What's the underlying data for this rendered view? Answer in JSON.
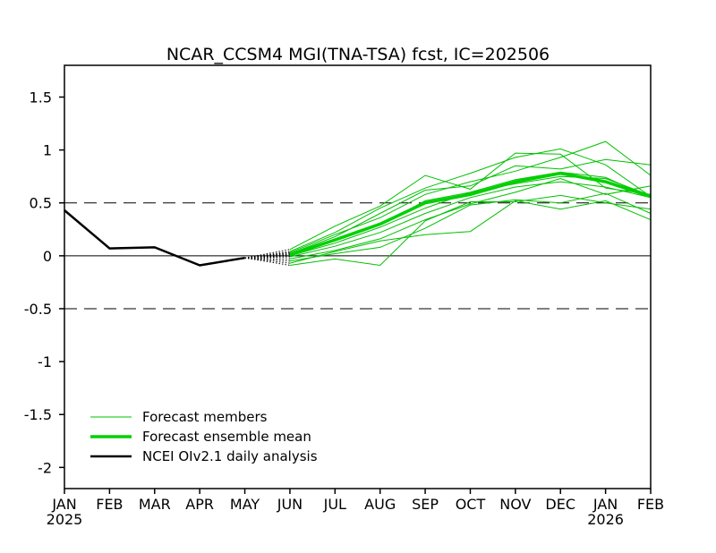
{
  "chart_data": {
    "type": "line",
    "title": "NCAR_CCSM4 MGI(TNA-TSA) fcst, IC=202506",
    "xlabel": "",
    "ylabel": "",
    "x_ticks": [
      "JAN",
      "FEB",
      "MAR",
      "APR",
      "MAY",
      "JUN",
      "JUL",
      "AUG",
      "SEP",
      "OCT",
      "NOV",
      "DEC",
      "JAN",
      "FEB"
    ],
    "x_year_labels": [
      {
        "index": 0,
        "label": "2025"
      },
      {
        "index": 12,
        "label": "2026"
      }
    ],
    "ylim": [
      -2.2,
      1.8
    ],
    "y_ticks": [
      1.5,
      1,
      0.5,
      0,
      -0.5,
      -1,
      -1.5,
      -2
    ],
    "y_tick_labels": [
      "1.5",
      "1",
      "0.5",
      "0",
      "-0.5",
      "-1",
      "-1.5",
      "-2"
    ],
    "reference_lines": [
      {
        "y": 0.5,
        "style": "dashed"
      },
      {
        "y": 0,
        "style": "solid"
      },
      {
        "y": -0.5,
        "style": "dashed"
      }
    ],
    "observed": {
      "name": "NCEI OIv2.1 daily analysis",
      "color": "#000000",
      "x": [
        0,
        1,
        2,
        3,
        4
      ],
      "values": [
        0.43,
        0.07,
        0.08,
        -0.09,
        -0.02
      ]
    },
    "connector_from": {
      "x": 4,
      "y": -0.02
    },
    "ensemble_mean": {
      "name": "Forecast ensemble mean",
      "color": "#00d000",
      "x": [
        5,
        6,
        7,
        8,
        9,
        10,
        11,
        12,
        13
      ],
      "values": [
        0.01,
        0.15,
        0.3,
        0.5,
        0.58,
        0.7,
        0.78,
        0.7,
        0.56
      ]
    },
    "members": {
      "name": "Forecast members",
      "color": "#00c000",
      "x": [
        5,
        6,
        7,
        8,
        9,
        10,
        11,
        12,
        13
      ],
      "series": [
        [
          0.06,
          0.28,
          0.47,
          0.76,
          0.63,
          0.97,
          0.96,
          0.64,
          0.58
        ],
        [
          0.04,
          0.22,
          0.45,
          0.64,
          0.78,
          0.93,
          1.01,
          0.86,
          0.56
        ],
        [
          0.03,
          0.2,
          0.36,
          0.58,
          0.7,
          0.8,
          0.93,
          1.08,
          0.76
        ],
        [
          0.02,
          0.18,
          0.4,
          0.62,
          0.66,
          0.85,
          0.82,
          0.91,
          0.86
        ],
        [
          0.01,
          0.15,
          0.29,
          0.52,
          0.6,
          0.72,
          0.79,
          0.74,
          0.55
        ],
        [
          0.0,
          0.12,
          0.27,
          0.45,
          0.6,
          0.68,
          0.75,
          0.73,
          0.57
        ],
        [
          -0.01,
          0.09,
          0.22,
          0.4,
          0.55,
          0.65,
          0.7,
          0.65,
          0.55
        ],
        [
          -0.03,
          0.05,
          0.16,
          0.34,
          0.49,
          0.6,
          0.73,
          0.58,
          0.66
        ],
        [
          -0.05,
          0.02,
          0.08,
          0.26,
          0.48,
          0.53,
          0.5,
          0.59,
          0.4
        ],
        [
          -0.07,
          0.04,
          0.14,
          0.2,
          0.23,
          0.52,
          0.44,
          0.52,
          0.34
        ],
        [
          -0.09,
          -0.03,
          -0.09,
          0.33,
          0.51,
          0.51,
          0.57,
          0.5,
          0.44
        ]
      ]
    },
    "legend": {
      "placement": "bottom-left",
      "entries": [
        "Forecast members",
        "Forecast ensemble mean",
        "NCEI OIv2.1 daily analysis"
      ]
    }
  }
}
